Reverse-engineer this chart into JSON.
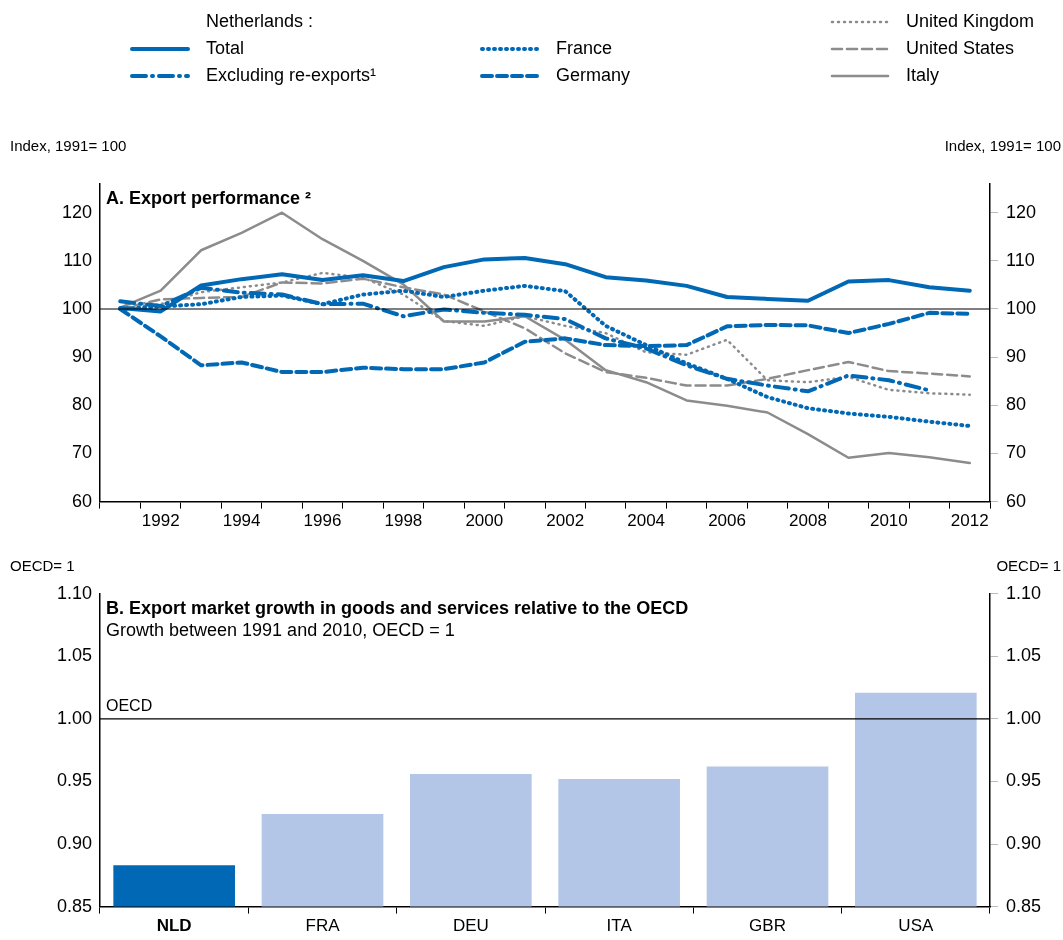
{
  "chart_data": [
    {
      "type": "line",
      "title": "A. Export performance ²",
      "ylabel": "Index, 1991= 100",
      "y2label": "Index, 1991= 100",
      "legend_title": "Netherlands :",
      "legend": "top",
      "categories": [
        null,
        "1992",
        null,
        "1994",
        null,
        "1996",
        null,
        "1998",
        null,
        "2000",
        null,
        "2002",
        null,
        "2004",
        null,
        "2006",
        null,
        "2008",
        null,
        "2010",
        null,
        "2012"
      ],
      "ylim": [
        60,
        126
      ],
      "yticks": [
        60,
        70,
        80,
        90,
        100,
        110,
        120
      ],
      "y2lim": [
        60,
        126
      ],
      "y2ticks": [
        60,
        70,
        80,
        90,
        100,
        110,
        120
      ],
      "grid": false,
      "marker": "none",
      "ref_lines": [
        {
          "axis": "y",
          "value": 100,
          "color": "#000000"
        }
      ],
      "series": [
        {
          "name": "Total",
          "color": "#0068b4",
          "line_style": "solid",
          "values": [
            100.2,
            99.5,
            104.9,
            106.2,
            107.2,
            106,
            107,
            105.8,
            108.7,
            110.3,
            110.6,
            109.3,
            106.6,
            105.9,
            104.8,
            102.5,
            102.1,
            101.7,
            105.7,
            106,
            104.5,
            103.8
          ]
        },
        {
          "name": "Excluding re-exports¹",
          "color": "#0068b4",
          "line_style": "dashdot",
          "values": [
            101.6,
            100.6,
            104.4,
            103.4,
            103,
            101,
            101.1,
            98.5,
            99.9,
            99.2,
            98.8,
            97.9,
            93.9,
            91.8,
            88.3,
            85.5,
            84.1,
            82.9,
            86.2,
            85.2,
            83.1,
            null
          ]
        },
        {
          "name": "France",
          "color": "#0068b4",
          "line_style": "dotted",
          "values": [
            100,
            100.5,
            101,
            102.5,
            102.8,
            101,
            103,
            103.8,
            102.5,
            103.8,
            104.8,
            103.7,
            96.5,
            92.5,
            88.7,
            85.5,
            81.7,
            79.4,
            78.3,
            77.6,
            76.6,
            75.7
          ]
        },
        {
          "name": "Germany",
          "color": "#0068b4",
          "line_style": "dashed",
          "values": [
            100,
            94.3,
            88.3,
            88.9,
            86.9,
            86.9,
            87.8,
            87.5,
            87.5,
            88.9,
            93.2,
            93.9,
            92.5,
            92.3,
            92.5,
            96.4,
            96.7,
            96.6,
            95,
            96.9,
            99.2,
            99
          ]
        },
        {
          "name": "United Kingdom",
          "color": "#8c8c8c",
          "line_style": "dotted",
          "values": [
            100,
            101,
            103.5,
            104.5,
            105.5,
            107.5,
            106.5,
            103,
            97.5,
            96.5,
            98.5,
            96.5,
            95,
            91,
            90.5,
            93.6,
            85.2,
            84.8,
            85.9,
            83.2,
            82.5,
            82.2
          ]
        },
        {
          "name": "United States",
          "color": "#8c8c8c",
          "line_style": "dashed",
          "values": [
            100,
            102,
            102.3,
            102.5,
            105.5,
            105.3,
            106.3,
            104.5,
            103,
            99.5,
            96,
            90.8,
            86.9,
            85.7,
            84.1,
            84.1,
            85.5,
            87.3,
            89,
            87.1,
            86.6,
            86
          ]
        },
        {
          "name": "Italy",
          "color": "#8c8c8c",
          "line_style": "solid",
          "values": [
            100.3,
            103.8,
            112.2,
            115.8,
            120,
            114.5,
            110,
            105.1,
            97.4,
            97.4,
            98.5,
            93.6,
            87.3,
            84.8,
            81,
            79.9,
            78.5,
            74,
            69.1,
            70.1,
            69.2,
            68
          ]
        }
      ]
    },
    {
      "type": "bar",
      "title": "B. Export market growth in goods and services relative to the OECD",
      "subtitle": "Growth between 1991 and 2010, OECD = 1",
      "ylabel": "OECD= 1",
      "y2label": "OECD= 1",
      "categories": [
        "NLD",
        "FRA",
        "DEU",
        "ITA",
        "GBR",
        "USA"
      ],
      "values": [
        0.883,
        0.924,
        0.956,
        0.952,
        0.962,
        1.021
      ],
      "colors": [
        "#0068b4",
        "#b3c6e7",
        "#b3c6e7",
        "#b3c6e7",
        "#b3c6e7",
        "#b3c6e7"
      ],
      "ylim": [
        0.85,
        1.1
      ],
      "yticks": [
        {
          "value": 0.85,
          "label": "0.85"
        },
        {
          "value": 0.9,
          "label": "0.90"
        },
        {
          "value": 0.95,
          "label": "0.95"
        },
        {
          "value": 1,
          "label": "1.00"
        },
        {
          "value": 1.05,
          "label": "1.05"
        },
        {
          "value": 1.1,
          "label": "1.10"
        }
      ],
      "y2lim": [
        0.85,
        1.1
      ],
      "y2ticks": [
        {
          "value": 0.85,
          "label": "0.85"
        },
        {
          "value": 0.9,
          "label": "0.90"
        },
        {
          "value": 0.95,
          "label": "0.95"
        },
        {
          "value": 1,
          "label": "1.00"
        },
        {
          "value": 1.05,
          "label": "1.05"
        },
        {
          "value": 1.1,
          "label": "1.10"
        }
      ],
      "grid": false,
      "ref_lines": [
        {
          "axis": "y",
          "value": 1,
          "label": "OECD",
          "color": "#000000"
        }
      ]
    }
  ]
}
